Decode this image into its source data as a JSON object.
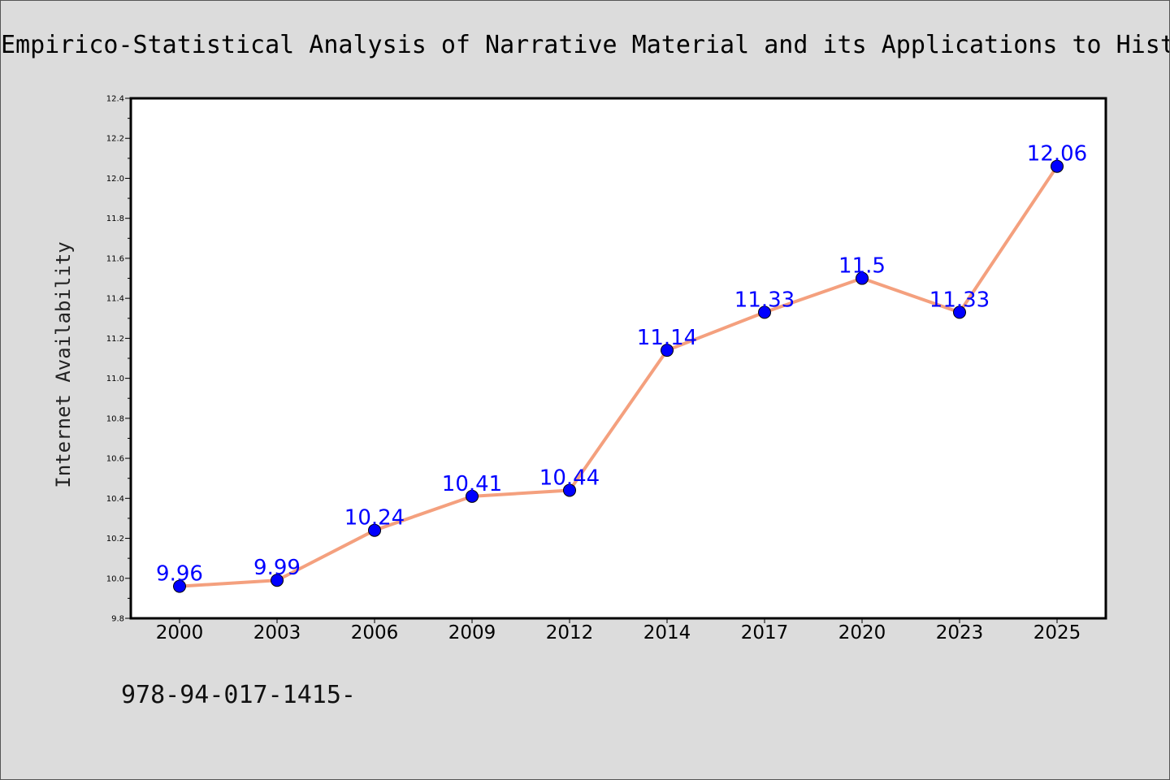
{
  "chart_data": {
    "type": "line",
    "title": "Empirico-Statistical Analysis of Narrative Material and its Applications to Hist",
    "xlabel": "",
    "ylabel": "Internet Availability",
    "categories": [
      "2000",
      "2003",
      "2006",
      "2009",
      "2012",
      "2014",
      "2017",
      "2020",
      "2023",
      "2025"
    ],
    "series": [
      {
        "values": [
          9.96,
          9.99,
          10.24,
          10.41,
          10.44,
          11.14,
          11.33,
          11.5,
          11.33,
          12.06
        ]
      }
    ],
    "data_labels": [
      "9.96",
      "9.99",
      "10.24",
      "10.41",
      "10.44",
      "11.14",
      "11.33",
      "11.5",
      "11.33",
      "12.06"
    ],
    "yticks": [
      "9.8",
      "10.0",
      "10.2",
      "10.4",
      "10.6",
      "10.8",
      "11.0",
      "11.2",
      "11.4",
      "11.6",
      "11.8",
      "12.0",
      "12.2",
      "12.4"
    ],
    "ylim": [
      9.8,
      12.4
    ],
    "grid": false,
    "colors": {
      "line": "#f4a07e",
      "marker": "#0000ff",
      "data_label": "#0000ff",
      "background": "#dcdcdc",
      "plot_background": "#ffffff"
    }
  },
  "footer": {
    "text": "978-94-017-1415-"
  }
}
